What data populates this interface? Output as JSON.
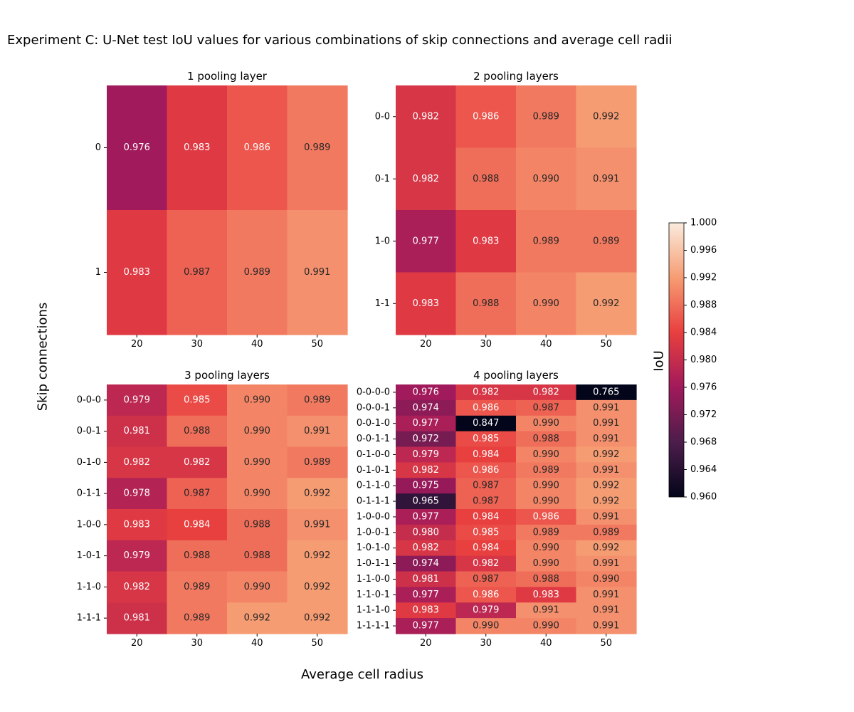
{
  "title": "Experiment C: U-Net test IoU values for various combinations of skip connections and average cell radii",
  "xlabel": "Average cell radius",
  "ylabel": "Skip connections",
  "colorbar": {
    "label": "IoU",
    "range": [
      0.96,
      1.0
    ],
    "ticks": [
      "0.960",
      "0.964",
      "0.968",
      "0.972",
      "0.976",
      "0.980",
      "0.984",
      "0.988",
      "0.992",
      "0.996",
      "1.000"
    ],
    "colormap": "rocket",
    "colors": [
      "#03051a",
      "#4c1d4b",
      "#a11a5b",
      "#e83f3f",
      "#f69c73",
      "#faebdd"
    ]
  },
  "chart_data": [
    {
      "type": "heatmap",
      "title": "1 pooling layer",
      "x": [
        "20",
        "30",
        "40",
        "50"
      ],
      "y": [
        "0",
        "1"
      ],
      "values": [
        [
          0.976,
          0.983,
          0.986,
          0.989
        ],
        [
          0.983,
          0.987,
          0.989,
          0.991
        ]
      ]
    },
    {
      "type": "heatmap",
      "title": "2 pooling layers",
      "x": [
        "20",
        "30",
        "40",
        "50"
      ],
      "y": [
        "0-0",
        "0-1",
        "1-0",
        "1-1"
      ],
      "values": [
        [
          0.982,
          0.986,
          0.989,
          0.992
        ],
        [
          0.982,
          0.988,
          0.99,
          0.991
        ],
        [
          0.977,
          0.983,
          0.989,
          0.989
        ],
        [
          0.983,
          0.988,
          0.99,
          0.992
        ]
      ]
    },
    {
      "type": "heatmap",
      "title": "3 pooling layers",
      "x": [
        "20",
        "30",
        "40",
        "50"
      ],
      "y": [
        "0-0-0",
        "0-0-1",
        "0-1-0",
        "0-1-1",
        "1-0-0",
        "1-0-1",
        "1-1-0",
        "1-1-1"
      ],
      "values": [
        [
          0.979,
          0.985,
          0.99,
          0.989
        ],
        [
          0.981,
          0.988,
          0.99,
          0.991
        ],
        [
          0.982,
          0.982,
          0.99,
          0.989
        ],
        [
          0.978,
          0.987,
          0.99,
          0.992
        ],
        [
          0.983,
          0.984,
          0.988,
          0.991
        ],
        [
          0.979,
          0.988,
          0.988,
          0.992
        ],
        [
          0.982,
          0.989,
          0.99,
          0.992
        ],
        [
          0.981,
          0.989,
          0.992,
          0.992
        ]
      ]
    },
    {
      "type": "heatmap",
      "title": "4 pooling layers",
      "x": [
        "20",
        "30",
        "40",
        "50"
      ],
      "y": [
        "0-0-0-0",
        "0-0-0-1",
        "0-0-1-0",
        "0-0-1-1",
        "0-1-0-0",
        "0-1-0-1",
        "0-1-1-0",
        "0-1-1-1",
        "1-0-0-0",
        "1-0-0-1",
        "1-0-1-0",
        "1-0-1-1",
        "1-1-0-0",
        "1-1-0-1",
        "1-1-1-0",
        "1-1-1-1"
      ],
      "values": [
        [
          0.976,
          0.982,
          0.982,
          0.765
        ],
        [
          0.974,
          0.986,
          0.987,
          0.991
        ],
        [
          0.977,
          0.847,
          0.99,
          0.991
        ],
        [
          0.972,
          0.985,
          0.988,
          0.991
        ],
        [
          0.979,
          0.984,
          0.99,
          0.992
        ],
        [
          0.982,
          0.986,
          0.989,
          0.991
        ],
        [
          0.975,
          0.987,
          0.99,
          0.992
        ],
        [
          0.965,
          0.987,
          0.99,
          0.992
        ],
        [
          0.977,
          0.984,
          0.986,
          0.991
        ],
        [
          0.98,
          0.985,
          0.989,
          0.989
        ],
        [
          0.982,
          0.984,
          0.99,
          0.992
        ],
        [
          0.974,
          0.982,
          0.99,
          0.991
        ],
        [
          0.981,
          0.987,
          0.988,
          0.99
        ],
        [
          0.977,
          0.986,
          0.983,
          0.991
        ],
        [
          0.983,
          0.979,
          0.991,
          0.991
        ],
        [
          0.977,
          0.99,
          0.99,
          0.991
        ]
      ]
    }
  ]
}
